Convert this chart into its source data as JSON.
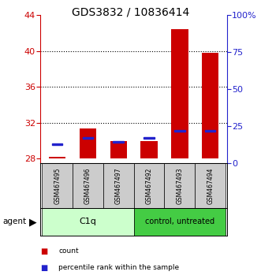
{
  "title": "GDS3832 / 10836414",
  "samples": [
    "GSM467495",
    "GSM467496",
    "GSM467497",
    "GSM467492",
    "GSM467493",
    "GSM467494"
  ],
  "count_values": [
    28.2,
    31.4,
    30.0,
    30.0,
    42.5,
    39.8
  ],
  "percentile_values": [
    29.5,
    30.2,
    29.8,
    30.2,
    31.0,
    31.0
  ],
  "bar_bottom": 28.0,
  "ylim_left": [
    27.5,
    44.0
  ],
  "yticks_left": [
    28,
    32,
    36,
    40,
    44
  ],
  "yticks_right_pct": [
    0,
    25,
    50,
    75,
    100
  ],
  "ytick_right_labels": [
    "0",
    "25",
    "50",
    "75",
    "100%"
  ],
  "count_color": "#cc0000",
  "percentile_color": "#2222cc",
  "left_axis_color": "#cc0000",
  "right_axis_color": "#2222cc",
  "bar_width": 0.55,
  "legend_count_label": "count",
  "legend_pct_label": "percentile rank within the sample",
  "c1q_color": "#ccffcc",
  "ctrl_color": "#44cc44",
  "label_bg": "#cccccc"
}
